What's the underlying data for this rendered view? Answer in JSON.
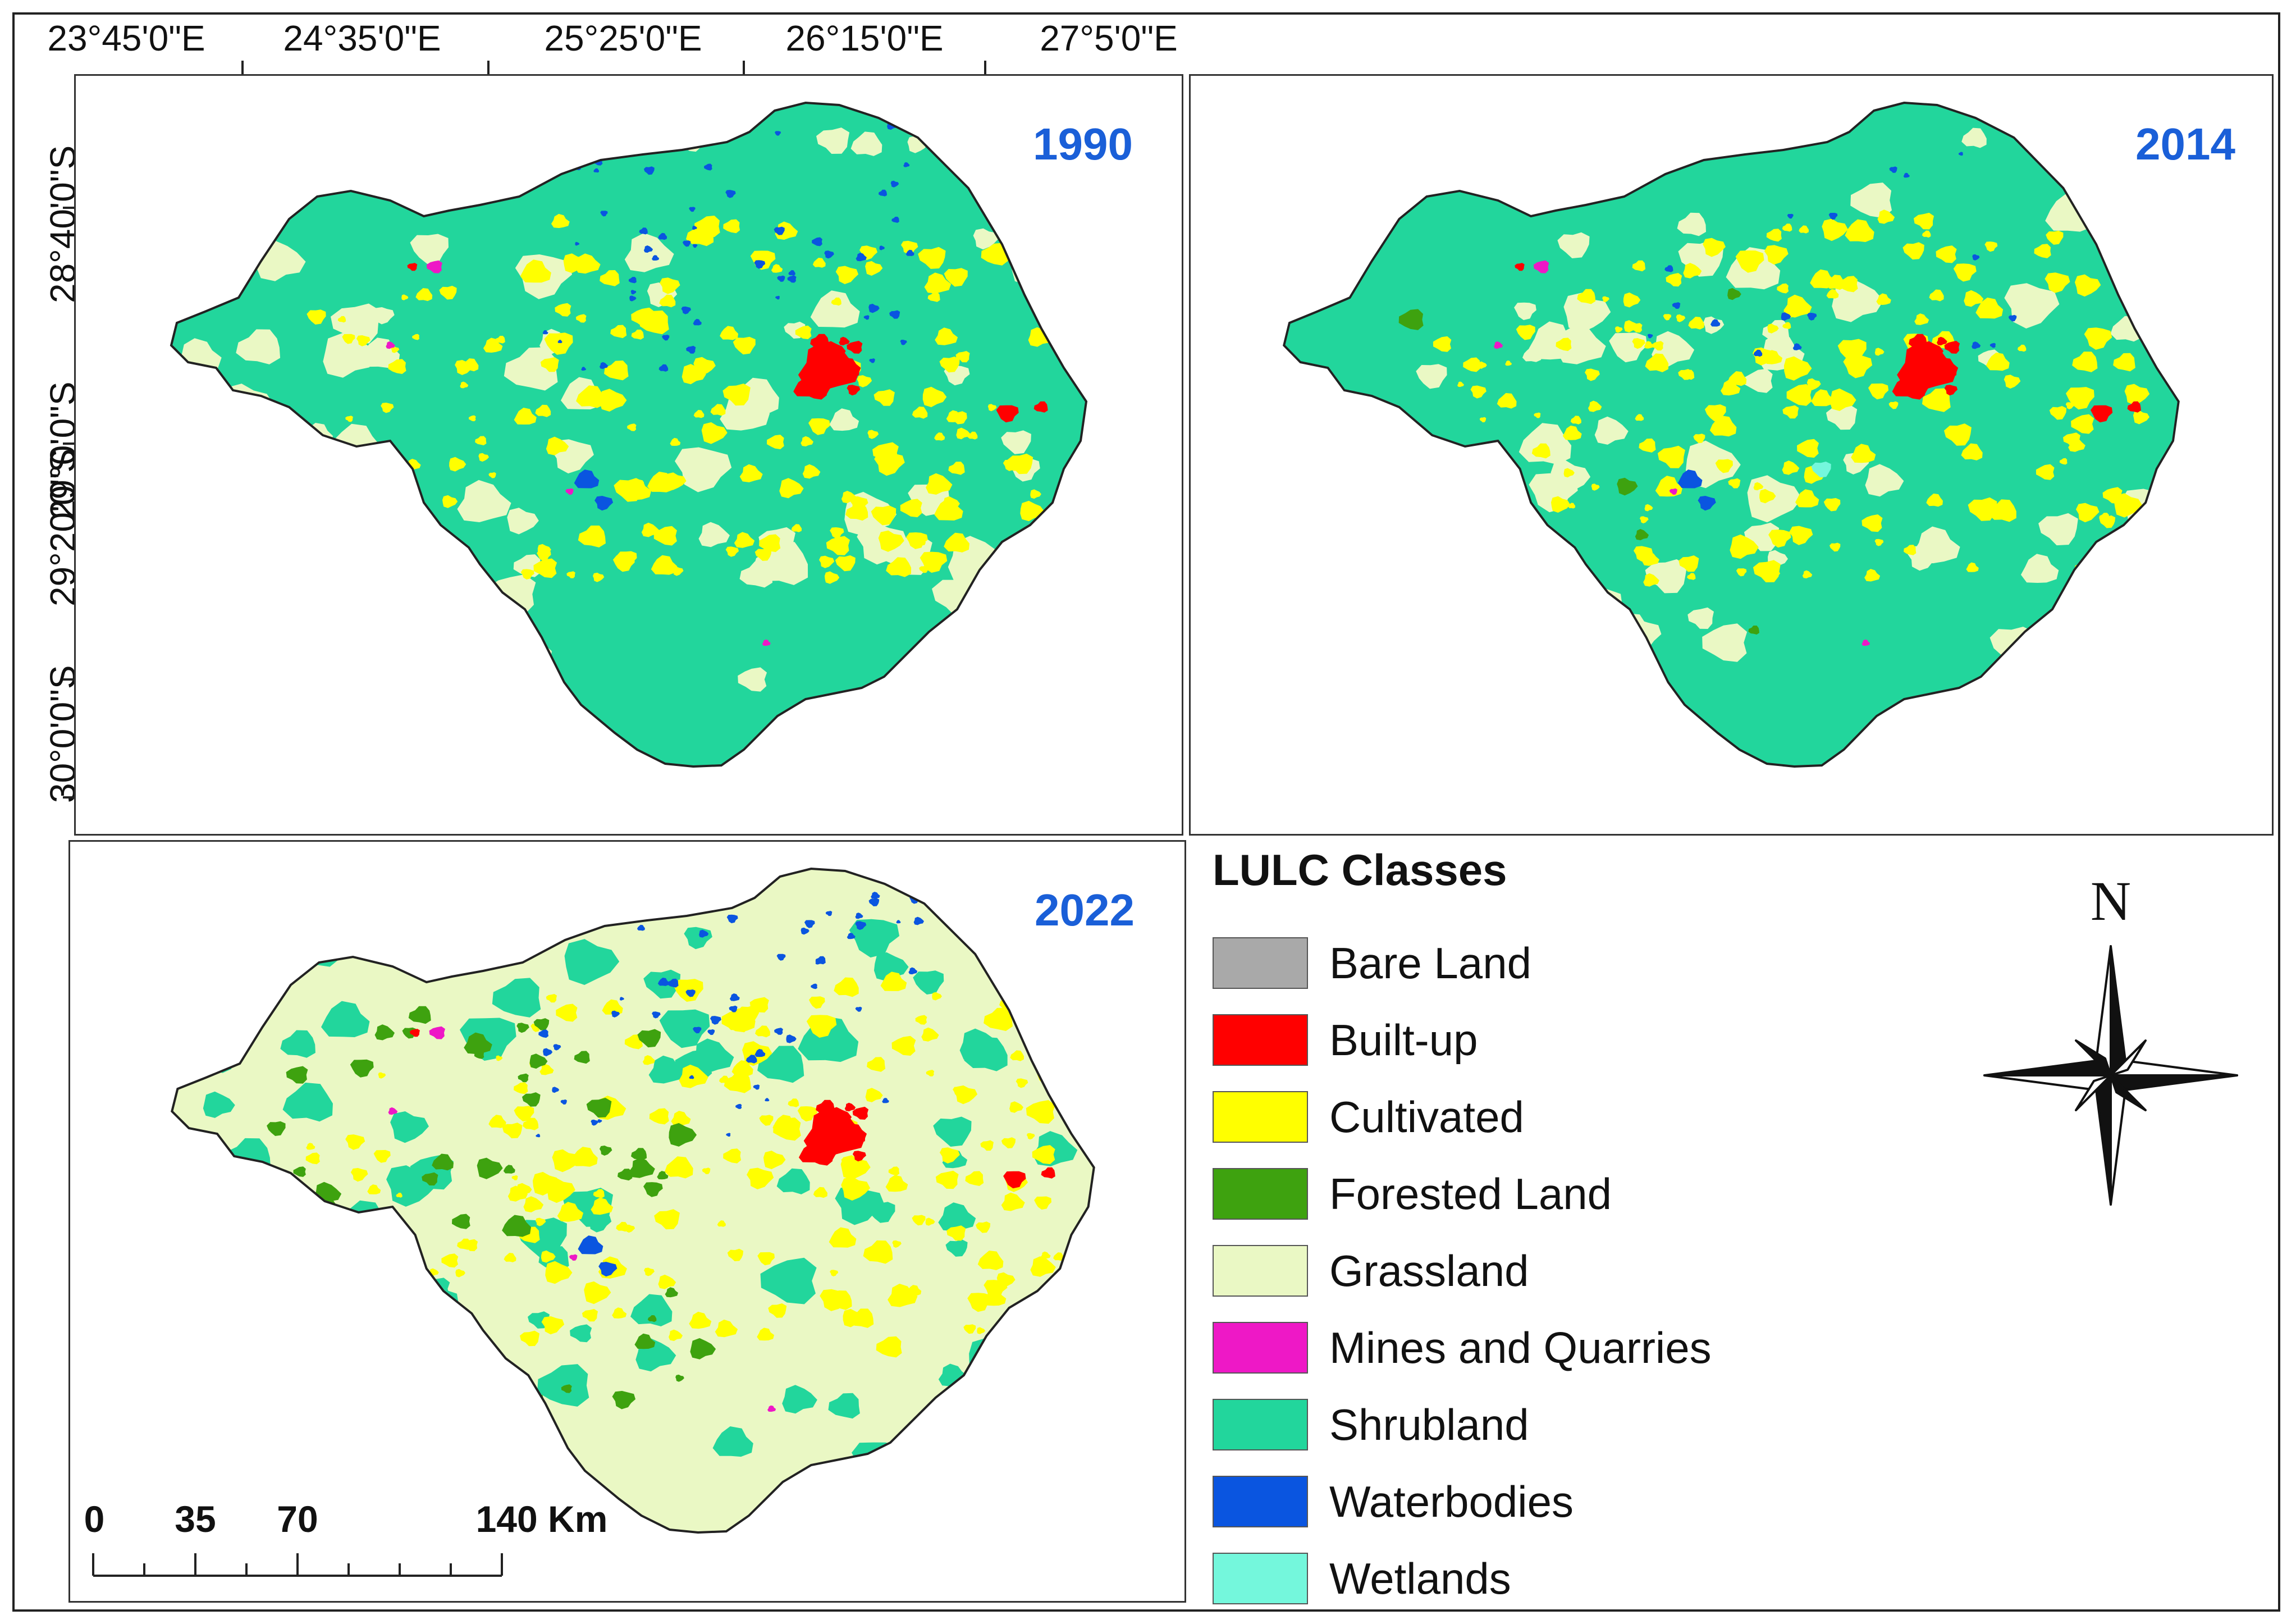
{
  "panels": [
    {
      "year": "1990",
      "variant": "1990"
    },
    {
      "year": "2014",
      "variant": "2014"
    },
    {
      "year": "2022",
      "variant": "2022"
    }
  ],
  "longitude_labels": [
    "23°45'0\"E",
    "24°35'0\"E",
    "25°25'0\"E",
    "26°15'0\"E",
    "27°5'0\"E"
  ],
  "latitude_labels": [
    "28°40'0\"S",
    "29°0'0\"S",
    "29°20'0\"S",
    "30°0'0\"S"
  ],
  "legend": {
    "title": "LULC Classes",
    "items": [
      {
        "label": "Bare Land",
        "color": "#a9a9a9"
      },
      {
        "label": "Built-up",
        "color": "#ff0000"
      },
      {
        "label": "Cultivated",
        "color": "#ffff00"
      },
      {
        "label": "Forested Land",
        "color": "#3ea20f"
      },
      {
        "label": "Grassland",
        "color": "#eaf8c4"
      },
      {
        "label": "Mines and Quarries",
        "color": "#ee18c6"
      },
      {
        "label": "Shrubland",
        "color": "#22d69c"
      },
      {
        "label": "Waterbodies",
        "color": "#0a55e0"
      },
      {
        "label": "Wetlands",
        "color": "#74f7dc"
      }
    ]
  },
  "scale_bar": {
    "labels": [
      "0",
      "35",
      "70",
      "140 Km"
    ]
  },
  "north_arrow": {
    "label": "N"
  }
}
